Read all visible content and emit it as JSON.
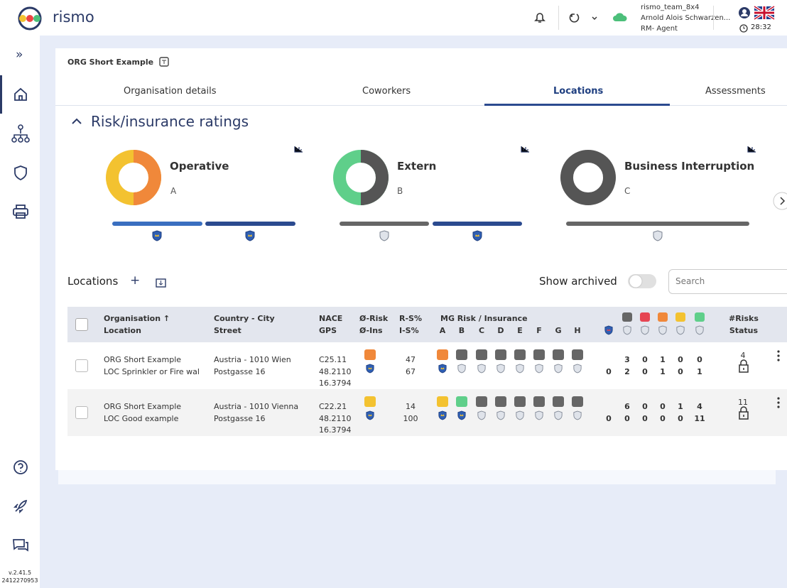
{
  "header": {
    "brand": "rismo",
    "user": "rismo_team_8x4",
    "name": "Arnold Alois Schwarzen...",
    "role": "RM- Agent",
    "time": "28:32"
  },
  "sidebar": {
    "version": "v.2.41.5",
    "build": "2412270953"
  },
  "breadcrumb": "ORG Short Example",
  "tabs": [
    "Organisation details",
    "Coworkers",
    "Locations",
    "Assessments"
  ],
  "section_title": "Risk/insurance ratings",
  "ratings": [
    {
      "title": "Operative",
      "grade": "A"
    },
    {
      "title": "Extern",
      "grade": "B"
    },
    {
      "title": "Business Interruption",
      "grade": "C"
    }
  ],
  "locations": {
    "title": "Locations",
    "show_archived": "Show archived",
    "search": "Search"
  },
  "table": {
    "header": {
      "org": "Organisation",
      "location": "Location",
      "country": "Country - City",
      "street": "Street",
      "nace": "NACE",
      "gps": "GPS",
      "avg_risk": "Ø-Risk",
      "avg_ins": "Ø-Ins",
      "rs": "R-S%",
      "is": "I-S%",
      "mg": "MG Risk / Insurance",
      "grades": [
        "A",
        "B",
        "C",
        "D",
        "E",
        "F",
        "G",
        "H"
      ],
      "risks": "#Risks",
      "status": "Status"
    },
    "rows": [
      {
        "org": "ORG Short Example",
        "location": "LOC Sprinkler or Fire wal",
        "country": "Austria - 1010 Wien",
        "street": "Postgasse 16",
        "nace": "C25.11",
        "lat": "48.2110",
        "lon": "16.3794",
        "rs": "47",
        "is": "67",
        "risk_counts": [
          "3",
          "0",
          "1",
          "0",
          "0"
        ],
        "ins_counts": [
          "0",
          "2",
          "0",
          "1",
          "0",
          "1"
        ],
        "risks": "4"
      },
      {
        "org": "ORG Short Example",
        "location": "LOC Good example",
        "country": "Austria - 1010 Vienna",
        "street": "Postgasse 16",
        "nace": "C22.21",
        "lat": "48.2110",
        "lon": "16.3794",
        "rs": "14",
        "is": "100",
        "risk_counts": [
          "6",
          "0",
          "0",
          "1",
          "4"
        ],
        "ins_counts": [
          "0",
          "0",
          "0",
          "0",
          "0",
          "11"
        ],
        "risks": "11"
      }
    ]
  }
}
